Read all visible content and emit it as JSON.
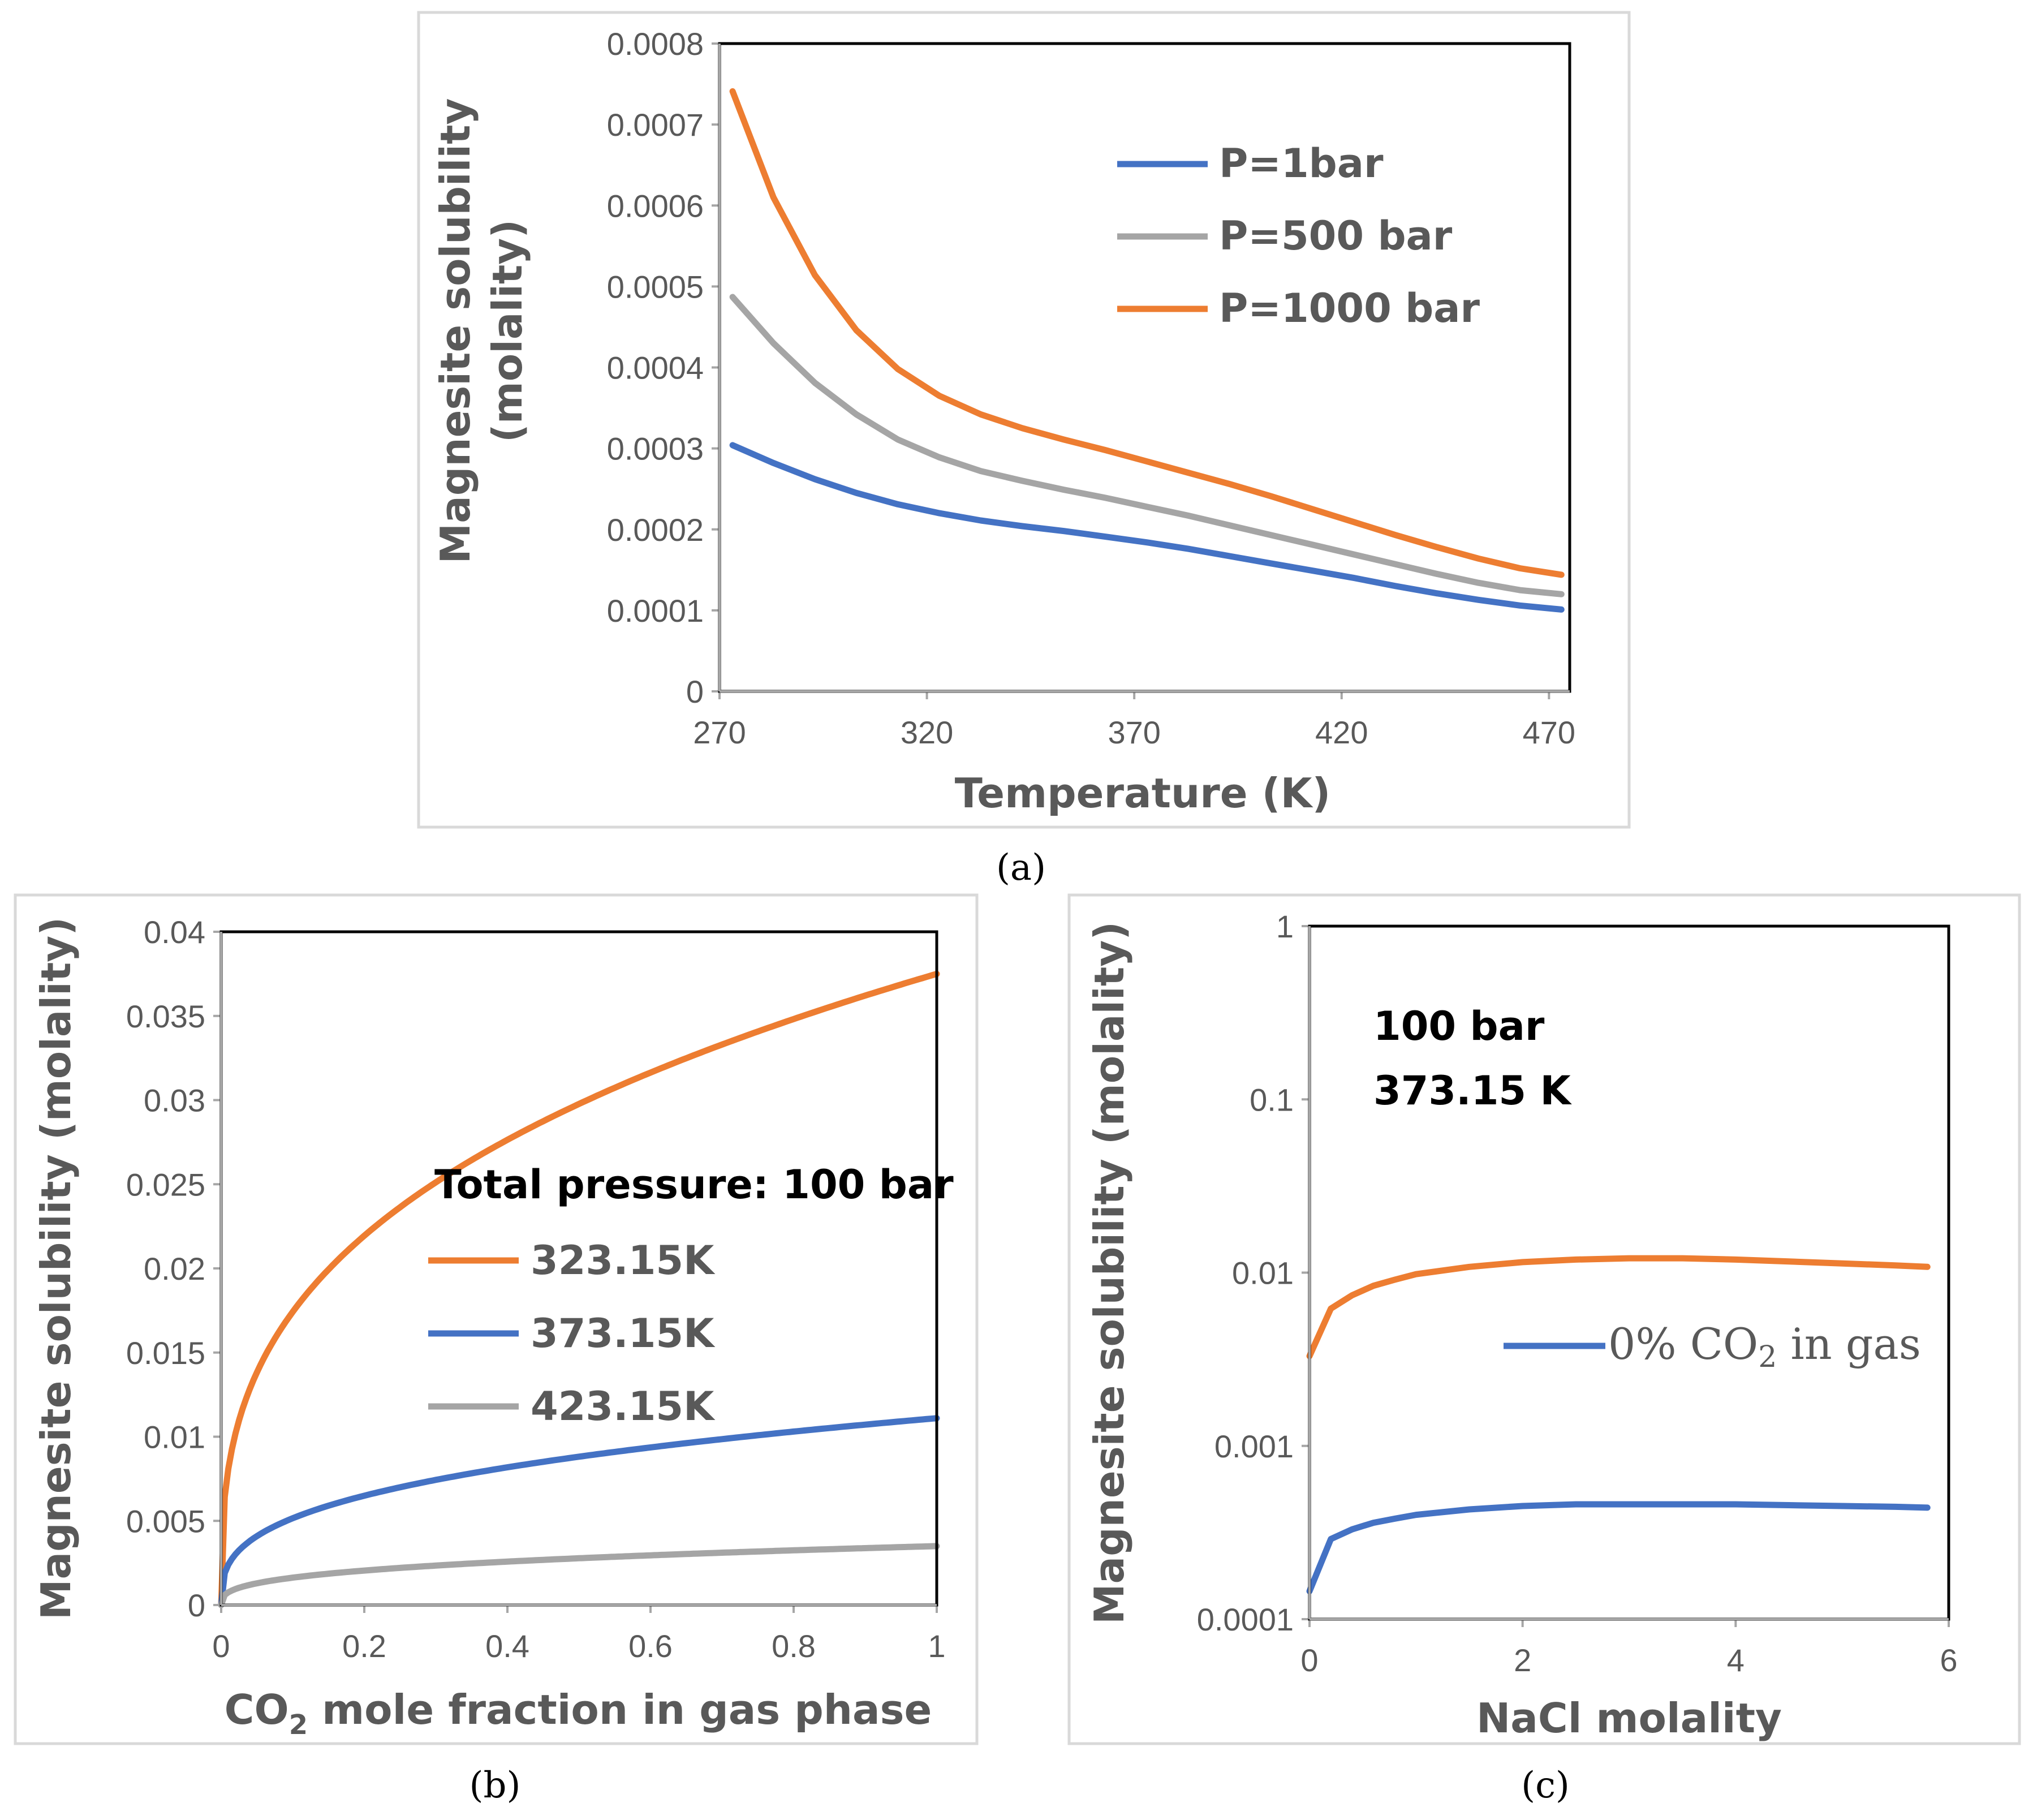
{
  "colors": {
    "blue": "#4472C4",
    "gray": "#A5A5A5",
    "orange": "#ED7D31",
    "frame": "#D9D9D9",
    "text": "#595959"
  },
  "chart_data": [
    {
      "panel": "a",
      "panel_label": "(a)",
      "type": "line",
      "xlabel": "Temperature (K)",
      "ylabel_lines": [
        "Magnesite solubility",
        "(molality)"
      ],
      "xlim": [
        270,
        475
      ],
      "ylim": [
        0,
        0.0008
      ],
      "x_ticks": [
        270,
        320,
        370,
        420,
        470
      ],
      "y_ticks": [
        0,
        0.0001,
        0.0002,
        0.0003,
        0.0004,
        0.0005,
        0.0006,
        0.0007,
        0.0008
      ],
      "x_tick_labels": [
        "270",
        "320",
        "370",
        "420",
        "470"
      ],
      "y_tick_labels": [
        "0",
        "0.0001",
        "0.0002",
        "0.0003",
        "0.0004",
        "0.0005",
        "0.0006",
        "0.0007",
        "0.0008"
      ],
      "legend": [
        "P=1bar",
        "P=500 bar",
        "P=1000 bar"
      ],
      "series": [
        {
          "name": "P=1bar",
          "color": "#4472C4",
          "x": [
            273.15,
            283,
            293,
            303,
            313,
            323,
            333,
            343,
            353,
            363,
            373,
            383,
            393,
            403,
            413,
            423,
            433,
            443,
            453,
            463,
            473
          ],
          "y": [
            0.000304,
            0.000282,
            0.000262,
            0.000245,
            0.000231,
            0.00022,
            0.000211,
            0.000204,
            0.000198,
            0.000191,
            0.000184,
            0.000176,
            0.000167,
            0.000158,
            0.000149,
            0.00014,
            0.00013,
            0.000121,
            0.000113,
            0.000106,
            0.000101
          ]
        },
        {
          "name": "P=500 bar",
          "color": "#A5A5A5",
          "x": [
            273.15,
            283,
            293,
            303,
            313,
            323,
            333,
            343,
            353,
            363,
            373,
            383,
            393,
            403,
            413,
            423,
            433,
            443,
            453,
            463,
            473
          ],
          "y": [
            0.000487,
            0.00043,
            0.000381,
            0.000342,
            0.000311,
            0.000289,
            0.000272,
            0.00026,
            0.000249,
            0.000239,
            0.000228,
            0.000217,
            0.000205,
            0.000193,
            0.000181,
            0.000169,
            0.000157,
            0.000145,
            0.000134,
            0.000125,
            0.00012
          ]
        },
        {
          "name": "P=1000 bar",
          "color": "#ED7D31",
          "x": [
            273.15,
            283,
            293,
            303,
            313,
            323,
            333,
            343,
            353,
            363,
            373,
            383,
            393,
            403,
            413,
            423,
            433,
            443,
            453,
            463,
            473
          ],
          "y": [
            0.000741,
            0.00061,
            0.000514,
            0.000446,
            0.000398,
            0.000365,
            0.000342,
            0.000325,
            0.000311,
            0.000298,
            0.000284,
            0.00027,
            0.000256,
            0.000241,
            0.000225,
            0.000209,
            0.000193,
            0.000178,
            0.000164,
            0.000152,
            0.000144
          ]
        }
      ]
    },
    {
      "panel": "b",
      "panel_label": "(b)",
      "type": "line",
      "xlabel_main": "CO",
      "xlabel_sub": "2",
      "xlabel_rest": " mole fraction in gas phase",
      "ylabel": "Magnesite solubility (molality)",
      "xlim": [
        0,
        1
      ],
      "ylim": [
        0,
        0.04
      ],
      "x_ticks": [
        0,
        0.2,
        0.4,
        0.6,
        0.8,
        1
      ],
      "y_ticks": [
        0,
        0.005,
        0.01,
        0.015,
        0.02,
        0.025,
        0.03,
        0.035,
        0.04
      ],
      "x_tick_labels": [
        "0",
        "0.2",
        "0.4",
        "0.6",
        "0.8",
        "1"
      ],
      "y_tick_labels": [
        "0",
        "0.005",
        "0.01",
        "0.015",
        "0.02",
        "0.025",
        "0.03",
        "0.035",
        "0.04"
      ],
      "annotation": "Total pressure: 100 bar",
      "legend": [
        "323.15K",
        "373.15K",
        "423.15K"
      ],
      "series": [
        {
          "name": "323.15K",
          "color": "#ED7D31",
          "coef": 0.0375,
          "exponent": 0.333
        },
        {
          "name": "373.15K",
          "color": "#4472C4",
          "coef": 0.0111,
          "exponent": 0.333
        },
        {
          "name": "423.15K",
          "color": "#A5A5A5",
          "coef": 0.0035,
          "exponent": 0.333
        }
      ]
    },
    {
      "panel": "c",
      "panel_label": "(c)",
      "type": "line",
      "scale_y": "log",
      "xlabel": "NaCl molality",
      "ylabel": "Magnesite solubility (molality)",
      "xlim": [
        0,
        6
      ],
      "ylim": [
        0.0001,
        1
      ],
      "x_ticks": [
        0,
        2,
        4,
        6
      ],
      "y_ticks": [
        0.0001,
        0.001,
        0.01,
        0.1,
        1
      ],
      "x_tick_labels": [
        "0",
        "2",
        "4",
        "6"
      ],
      "y_tick_labels": [
        "0.0001",
        "0.001",
        "0.01",
        "0.1",
        "1"
      ],
      "annotation_lines": [
        "100 bar",
        "373.15 K"
      ],
      "legend_prefix": "0% CO",
      "legend_sub": "2",
      "legend_suffix": " in gas",
      "series": [
        {
          "name": "orange",
          "color": "#ED7D31",
          "x": [
            0,
            0.2,
            0.4,
            0.6,
            0.8,
            1.0,
            1.5,
            2.0,
            2.5,
            3.0,
            3.5,
            4.0,
            4.5,
            5.0,
            5.5,
            5.8
          ],
          "y": [
            0.0033,
            0.0062,
            0.0074,
            0.0084,
            0.0091,
            0.0098,
            0.0108,
            0.0115,
            0.0119,
            0.0121,
            0.0121,
            0.0119,
            0.0116,
            0.0113,
            0.011,
            0.0108
          ]
        },
        {
          "name": "0% CO2 in gas",
          "color": "#4472C4",
          "x": [
            0,
            0.2,
            0.4,
            0.6,
            0.8,
            1.0,
            1.5,
            2.0,
            2.5,
            3.0,
            3.5,
            4.0,
            4.5,
            5.0,
            5.5,
            5.8
          ],
          "y": [
            0.000145,
            0.00029,
            0.00033,
            0.00036,
            0.00038,
            0.0004,
            0.00043,
            0.00045,
            0.00046,
            0.00046,
            0.00046,
            0.00046,
            0.000455,
            0.00045,
            0.000445,
            0.00044
          ]
        }
      ]
    }
  ]
}
